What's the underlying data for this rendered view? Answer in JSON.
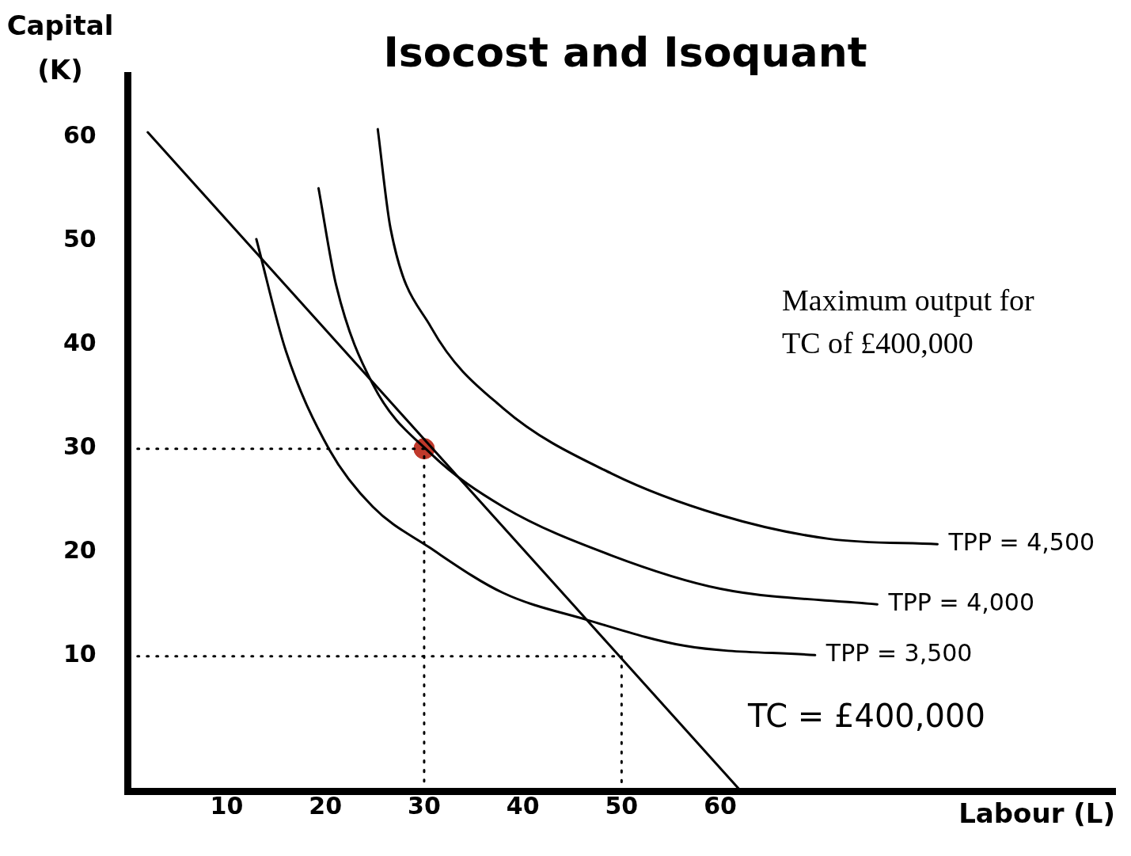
{
  "chart_data": {
    "type": "line",
    "title": "Isocost and Isoquant",
    "xlabel": "Labour (L)",
    "ylabel": "Capital (K)",
    "xlim": [
      0,
      100
    ],
    "ylim": [
      -3,
      66
    ],
    "xticks": [
      10,
      20,
      30,
      40,
      50,
      60
    ],
    "yticks": [
      10,
      20,
      30,
      40,
      50,
      60
    ],
    "grid": false,
    "legend": false,
    "marker": "none",
    "series": [
      {
        "x": [
          2,
          61.9
        ],
        "values": [
          60.5,
          -2.8
        ],
        "color": "#000000",
        "line_style": "solid"
      },
      {
        "name": "TPP = 3,500",
        "x": [
          13,
          16,
          20.4,
          24.8,
          30.5,
          38,
          46.5,
          56.4,
          69.6
        ],
        "values": [
          50.2,
          39.4,
          29.9,
          24.4,
          20.5,
          16.1,
          13.5,
          11,
          10.1
        ],
        "color": "#000000",
        "line_style": "solid"
      },
      {
        "name": "TPP = 4,000",
        "x": [
          19.3,
          21.1,
          24.8,
          30.7,
          38,
          49,
          60,
          75.9
        ],
        "values": [
          55.1,
          45.7,
          36.2,
          29.5,
          24.4,
          19.7,
          16.5,
          15
        ],
        "color": "#000000",
        "line_style": "solid"
      },
      {
        "name": "TPP = 4,500",
        "x": [
          25.3,
          26.6,
          30.7,
          38,
          49,
          60,
          71.1,
          82
        ],
        "values": [
          60.8,
          51.2,
          41.7,
          33.9,
          27.6,
          23.6,
          21.3,
          20.8
        ],
        "color": "#000000",
        "line_style": "solid"
      },
      {
        "x": [
          0,
          30,
          30
        ],
        "values": [
          30,
          30,
          -3
        ],
        "color": "#000000",
        "line_style": "dotted"
      },
      {
        "x": [
          0,
          50,
          50
        ],
        "values": [
          10,
          10,
          -3
        ],
        "color": "#000000",
        "line_style": "dotted"
      },
      {
        "type": "scatter",
        "x": [
          30
        ],
        "values": [
          30
        ],
        "color": "#c0392b",
        "marker": "circle"
      }
    ],
    "annotations": [
      "Maximum output for TC of £400,000",
      "TC = £400,000"
    ]
  }
}
